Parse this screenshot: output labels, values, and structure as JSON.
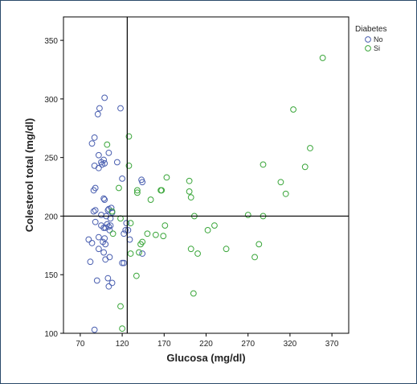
{
  "chart_data": {
    "type": "scatter",
    "title": "",
    "xlabel": "Glucosa (mg/dl)",
    "ylabel": "Colesterol total (mg/dl)",
    "xlim": [
      50,
      390
    ],
    "ylim": [
      100,
      370
    ],
    "xticks": [
      70,
      120,
      170,
      220,
      270,
      320,
      370
    ],
    "yticks": [
      100,
      150,
      200,
      250,
      300,
      350
    ],
    "reference_lines": {
      "x": 126,
      "y": 200
    },
    "grid": false,
    "legend": {
      "title": "Diabetes",
      "placement": "top-right"
    },
    "series": [
      {
        "name": "No",
        "color": "#4a5fb0",
        "points": [
          [
            87,
            103
          ],
          [
            87,
            267
          ],
          [
            84,
            262
          ],
          [
            87,
            243
          ],
          [
            86,
            222
          ],
          [
            88,
            224
          ],
          [
            86,
            204
          ],
          [
            88,
            205
          ],
          [
            88,
            195
          ],
          [
            84,
            177
          ],
          [
            80,
            180
          ],
          [
            82,
            161
          ],
          [
            90,
            145
          ],
          [
            92,
            252
          ],
          [
            92,
            241
          ],
          [
            91,
            287
          ],
          [
            93,
            292
          ],
          [
            99,
            301
          ],
          [
            98,
            248
          ],
          [
            95,
            246
          ],
          [
            99,
            245
          ],
          [
            96,
            244
          ],
          [
            104,
            254
          ],
          [
            98,
            215
          ],
          [
            99,
            214
          ],
          [
            95,
            201
          ],
          [
            101,
            200
          ],
          [
            103,
            205
          ],
          [
            108,
            203
          ],
          [
            107,
            207
          ],
          [
            104,
            206
          ],
          [
            106,
            192
          ],
          [
            95,
            192
          ],
          [
            98,
            190
          ],
          [
            102,
            193
          ],
          [
            100,
            190
          ],
          [
            105,
            188
          ],
          [
            99,
            181
          ],
          [
            92,
            182
          ],
          [
            97,
            178
          ],
          [
            100,
            176
          ],
          [
            92,
            172
          ],
          [
            98,
            169
          ],
          [
            105,
            165
          ],
          [
            100,
            163
          ],
          [
            103,
            147
          ],
          [
            104,
            140
          ],
          [
            108,
            143
          ],
          [
            106,
            198
          ],
          [
            114,
            246
          ],
          [
            120,
            232
          ],
          [
            122,
            185
          ],
          [
            124,
            188
          ],
          [
            125,
            194
          ],
          [
            127,
            188
          ],
          [
            120,
            160
          ],
          [
            122,
            160
          ],
          [
            118,
            292
          ],
          [
            144,
            168
          ],
          [
            143,
            231
          ],
          [
            144,
            229
          ],
          [
            129,
            180
          ],
          [
            104,
            191
          ]
        ]
      },
      {
        "name": "Si",
        "color": "#3aa63a",
        "points": [
          [
            359,
            335
          ],
          [
            324,
            291
          ],
          [
            344,
            258
          ],
          [
            338,
            242
          ],
          [
            288,
            244
          ],
          [
            309,
            229
          ],
          [
            315,
            219
          ],
          [
            270,
            201
          ],
          [
            288,
            200
          ],
          [
            283,
            176
          ],
          [
            278,
            165
          ],
          [
            244,
            172
          ],
          [
            230,
            192
          ],
          [
            222,
            188
          ],
          [
            206,
            200
          ],
          [
            210,
            168
          ],
          [
            202,
            172
          ],
          [
            205,
            134
          ],
          [
            200,
            230
          ],
          [
            200,
            221
          ],
          [
            202,
            216
          ],
          [
            173,
            233
          ],
          [
            167,
            222
          ],
          [
            166,
            222
          ],
          [
            154,
            214
          ],
          [
            138,
            222
          ],
          [
            138,
            220
          ],
          [
            128,
            268
          ],
          [
            128,
            243
          ],
          [
            130,
            194
          ],
          [
            130,
            168
          ],
          [
            140,
            169
          ],
          [
            137,
            149
          ],
          [
            150,
            185
          ],
          [
            160,
            184
          ],
          [
            142,
            176
          ],
          [
            144,
            178
          ],
          [
            171,
            192
          ],
          [
            169,
            183
          ],
          [
            118,
            123
          ],
          [
            120,
            104
          ],
          [
            102,
            261
          ],
          [
            116,
            224
          ],
          [
            108,
            204
          ],
          [
            118,
            198
          ],
          [
            109,
            185
          ]
        ]
      }
    ]
  }
}
